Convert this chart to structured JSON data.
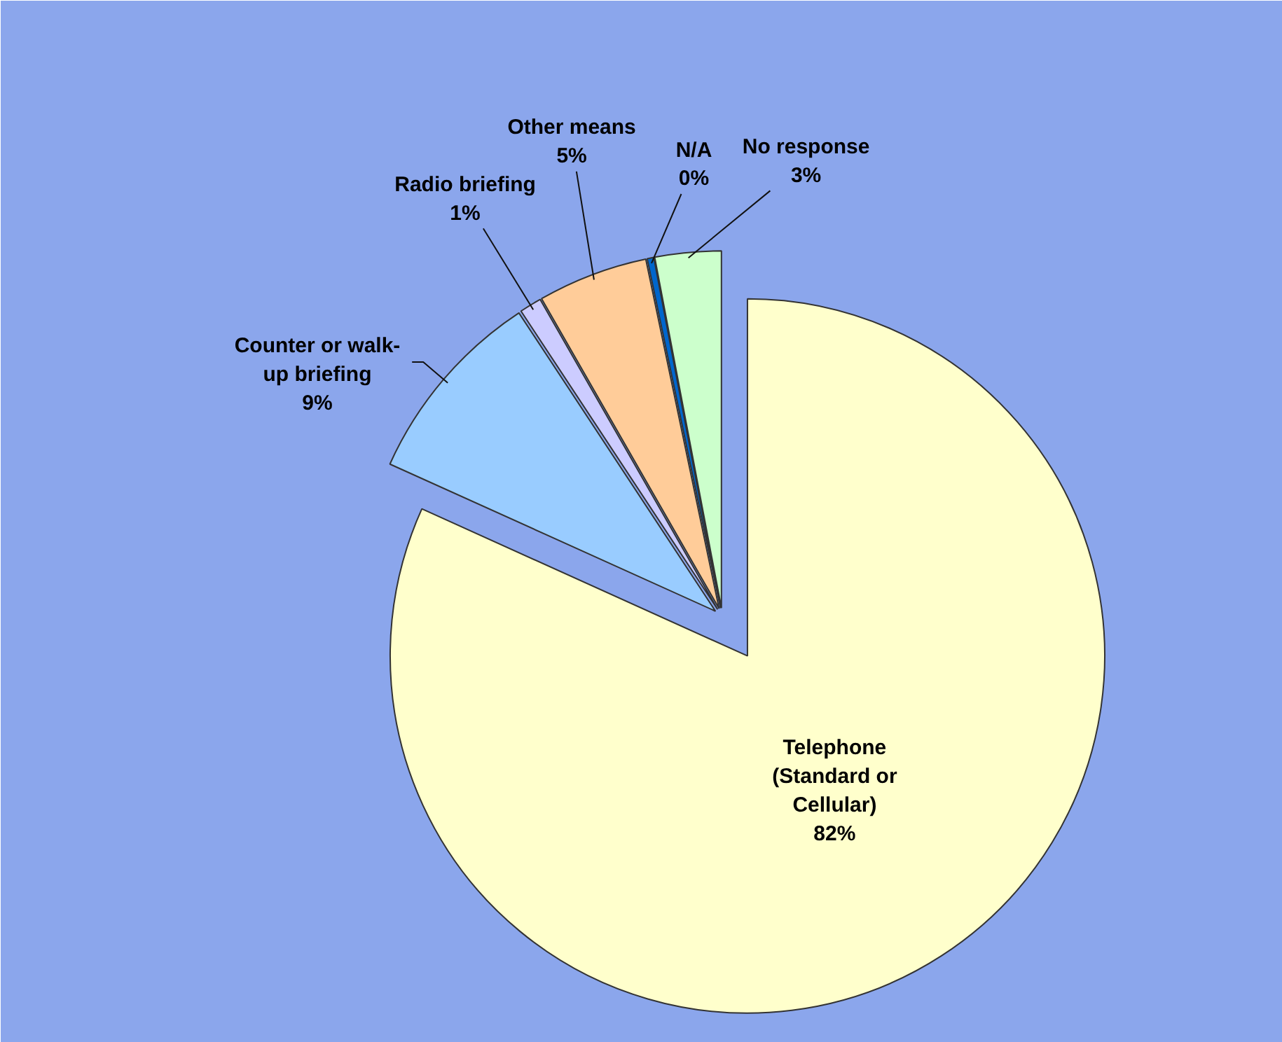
{
  "chart_data": {
    "type": "pie",
    "categories": [
      "Telephone (Standard or Cellular)",
      "Counter or walk-up briefing",
      "Radio briefing",
      "Other means",
      "N/A",
      "No response"
    ],
    "values": [
      82,
      9,
      1,
      5,
      0.3,
      3
    ],
    "colors": [
      "#ffffcc",
      "#99ccff",
      "#ccccff",
      "#ffcc99",
      "#0066cc",
      "#ccffcc"
    ],
    "value_labels": [
      "82%",
      "9%",
      "1%",
      "5%",
      "0%",
      "3%"
    ]
  }
}
